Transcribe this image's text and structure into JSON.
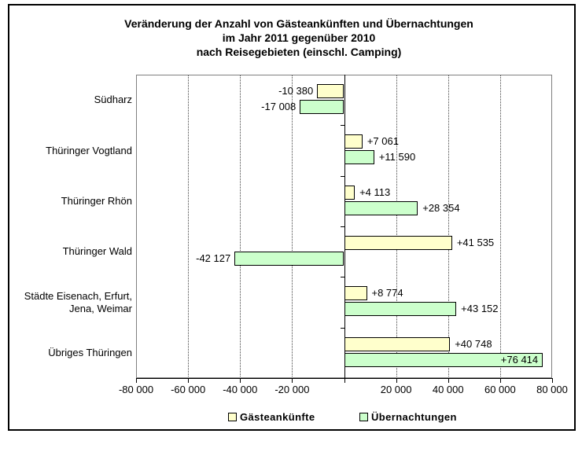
{
  "title": {
    "line1": "Veränderung der Anzahl von Gästeankünften und Übernachtungen",
    "line2": "im Jahr 2011 gegenüber 2010",
    "line3": "nach Reisegebieten (einschl. Camping)"
  },
  "chart_data": {
    "type": "bar",
    "orientation": "horizontal",
    "title": "Veränderung der Anzahl von Gästeankünften und Übernachtungen im Jahr 2011 gegenüber 2010 nach Reisegebieten (einschl. Camping)",
    "categories": [
      "Südharz",
      "Thüringer Vogtland",
      "Thüringer Rhön",
      "Thüringer Wald",
      "Städte Eisenach, Erfurt,\nJena, Weimar",
      "Übriges Thüringen"
    ],
    "series": [
      {
        "name": "Gästeankünfte",
        "key": "gaesteankuenfte",
        "color": "#FFFFCC",
        "border_color": "#000000",
        "values": [
          -10380,
          7061,
          4113,
          41535,
          8774,
          40748
        ],
        "labels": [
          "-10 380",
          "+7 061",
          "+4 113",
          "+41 535",
          "+8 774",
          "+40 748"
        ],
        "label_inside": [
          false,
          false,
          false,
          false,
          false,
          false
        ]
      },
      {
        "name": "Übernachtungen",
        "key": "uebernachtungen",
        "color": "#CCFFCC",
        "border_color": "#000000",
        "values": [
          -17008,
          11590,
          28354,
          -42127,
          43152,
          76414
        ],
        "labels": [
          "-17 008",
          "+11 590",
          "+28 354",
          "-42 127",
          "+43 152",
          "+76 414"
        ],
        "label_inside": [
          false,
          false,
          false,
          false,
          false,
          true
        ]
      }
    ],
    "xlim": [
      -80000,
      80000
    ],
    "x_ticks": [
      -80000,
      -60000,
      -40000,
      -20000,
      0,
      20000,
      40000,
      60000,
      80000
    ],
    "x_tick_labels": [
      "-80 000",
      "-60 000",
      "-40 000",
      "-20 000",
      "",
      "20 000",
      "40 000",
      "60 000",
      "80 000"
    ],
    "grid": "vertical-dotted",
    "legend_position": "bottom"
  }
}
